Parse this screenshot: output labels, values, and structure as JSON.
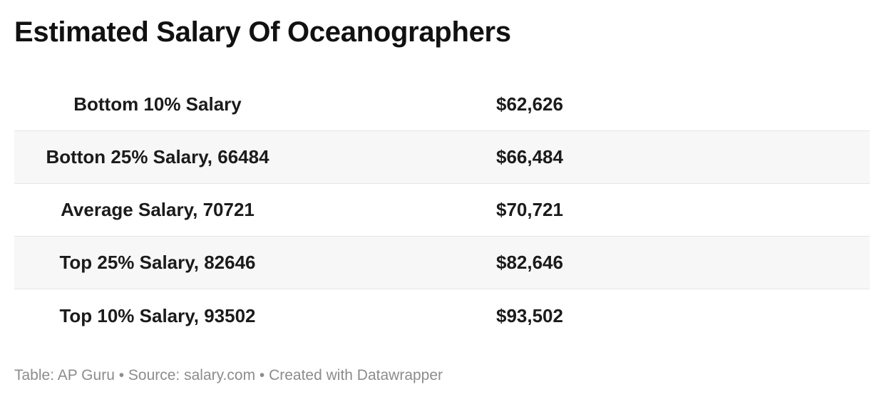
{
  "title": "Estimated Salary Of Oceanographers",
  "chart_data": {
    "type": "table",
    "title": "Estimated Salary Of Oceanographers",
    "rows": [
      {
        "label": "Bottom 10% Salary",
        "value_text": "$62,626",
        "value": 62626
      },
      {
        "label": "Botton 25% Salary, 66484",
        "value_text": "$66,484",
        "value": 66484
      },
      {
        "label": "Average Salary, 70721",
        "value_text": "$70,721",
        "value": 70721
      },
      {
        "label": "Top 25% Salary, 82646",
        "value_text": "$82,646",
        "value": 82646
      },
      {
        "label": "Top 10% Salary, 93502",
        "value_text": "$93,502",
        "value": 93502
      }
    ]
  },
  "footer": "Table: AP Guru • Source: salary.com • Created with Datawrapper"
}
